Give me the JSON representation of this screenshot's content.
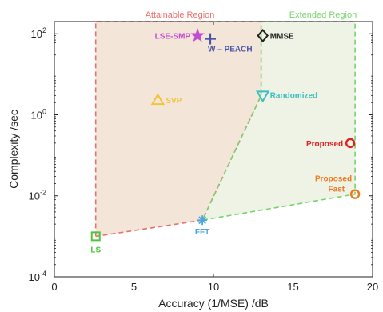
{
  "chart_data": {
    "type": "scatter",
    "xlabel": "Accuracy (1/MSE)  /dB",
    "ylabel": "Complexity /sec",
    "xlim": [
      0,
      20
    ],
    "ylim": [
      0.0001,
      200
    ],
    "yscale": "log",
    "grid": false,
    "x_ticks": [
      {
        "value": 0,
        "label": "0"
      },
      {
        "value": 5,
        "label": "5"
      },
      {
        "value": 10,
        "label": "10"
      },
      {
        "value": 15,
        "label": "15"
      },
      {
        "value": 20,
        "label": "20"
      }
    ],
    "y_ticks": [
      {
        "value": 0.0001,
        "base": "10",
        "exp": "-4"
      },
      {
        "value": 0.01,
        "base": "10",
        "exp": "-2"
      },
      {
        "value": 1,
        "base": "10",
        "exp": "0"
      },
      {
        "value": 100,
        "base": "10",
        "exp": "2"
      }
    ],
    "regions": [
      {
        "name": "Attainable Region",
        "color": "#e8736f",
        "fill": "#f3e6d9",
        "points": [
          [
            2.6,
            0.001
          ],
          [
            2.6,
            200
          ],
          [
            13.0,
            200
          ],
          [
            13.0,
            3
          ],
          [
            9.3,
            0.0025
          ],
          [
            2.6,
            0.001
          ]
        ]
      },
      {
        "name": "Extended Region",
        "color": "#77d36b",
        "fill": "#eef3e6",
        "points": [
          [
            13.0,
            200
          ],
          [
            18.9,
            200
          ],
          [
            18.9,
            0.011
          ],
          [
            9.3,
            0.0025
          ],
          [
            13.0,
            3
          ],
          [
            13.0,
            200
          ]
        ]
      }
    ],
    "points": [
      {
        "name": "LS",
        "x": 2.6,
        "y": 0.001,
        "marker": "square",
        "color": "#4cc63e"
      },
      {
        "name": "FFT",
        "x": 9.3,
        "y": 0.0025,
        "marker": "asterisk",
        "color": "#4aa6e0"
      },
      {
        "name": "SVP",
        "x": 6.5,
        "y": 2.3,
        "marker": "triangle-up",
        "color": "#f2c33c"
      },
      {
        "name": "LSE-SMP",
        "x": 9.0,
        "y": 90,
        "marker": "star",
        "color": "#c64ad0"
      },
      {
        "name": "W – PEACH",
        "x": 9.8,
        "y": 75,
        "marker": "plus",
        "color": "#4a55a4"
      },
      {
        "name": "MMSE",
        "x": 13.1,
        "y": 90,
        "marker": "diamond",
        "color": "#222222"
      },
      {
        "name": "Randomized",
        "x": 13.1,
        "y": 3,
        "marker": "triangle-down",
        "color": "#3ebfbf"
      },
      {
        "name": "Proposed",
        "x": 18.6,
        "y": 0.2,
        "marker": "circle",
        "color": "#e02020"
      },
      {
        "name": "Proposed Fast",
        "x": 18.9,
        "y": 0.011,
        "marker": "circle",
        "color": "#ee7a20"
      }
    ]
  }
}
